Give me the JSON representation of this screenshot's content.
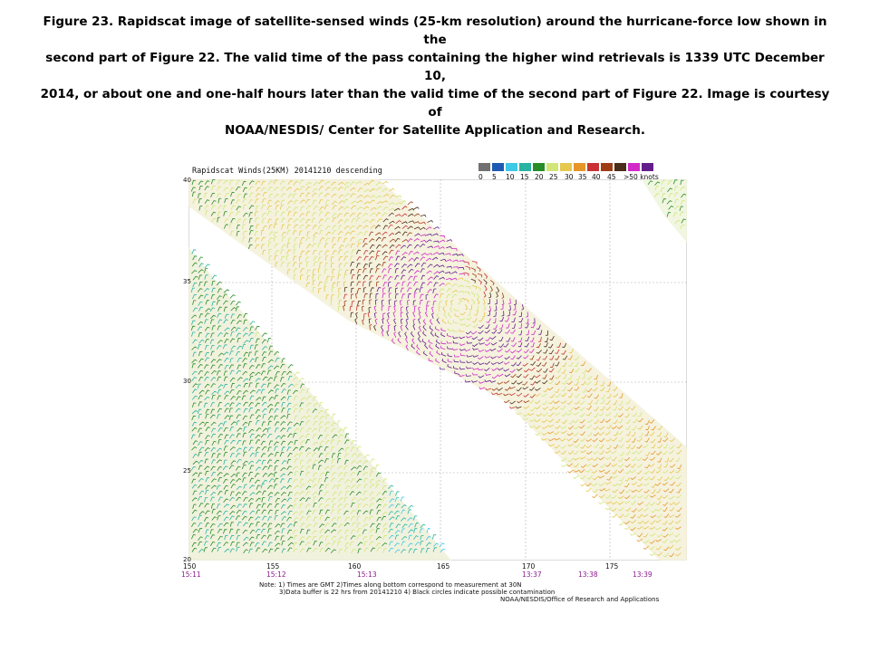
{
  "caption": {
    "lines": [
      "Figure 23.  Rapidscat image of satellite-sensed winds (25-km resolution) around the hurricane-force  low shown in the",
      "second part of Figure 22.  The valid time of the pass containing the higher wind retrievals is 1339 UTC December 10,",
      "2014, or about  one and one-half  hours later than the valid time of the second part of Figure 22.  Image is courtesy of",
      "NOAA/NESDIS/ Center for Satellite Application  and Research."
    ]
  },
  "map": {
    "title": "Rapidscat Winds(25KM) 20141210 descending",
    "legend": {
      "colors": [
        "#707070",
        "#1e5ab4",
        "#3cc8e6",
        "#28b4a0",
        "#288c28",
        "#d2e678",
        "#e6c850",
        "#e69628",
        "#c83232",
        "#a03c14",
        "#4b2d19",
        "#d228c8",
        "#641e8c"
      ],
      "labels": [
        "0",
        "5",
        "10",
        "15",
        "20",
        "25",
        "30",
        "35",
        "40",
        "45",
        ">50 knots"
      ]
    },
    "lat_labels": [
      "40",
      "35",
      "30",
      "25",
      "20"
    ],
    "lon_labels": [
      "150",
      "155",
      "160",
      "165",
      "170",
      "175"
    ],
    "time_labels": [
      {
        "text": "15:11",
        "color": "#8b1a8b"
      },
      {
        "text": "15:12",
        "color": "#8b1a8b"
      },
      {
        "text": "15:13",
        "color": "#8b1a8b"
      },
      {
        "text": "13:37",
        "color": "#8b1a8b"
      },
      {
        "text": "13:38",
        "color": "#8b1a8b"
      },
      {
        "text": "13:39",
        "color": "#8b1a8b"
      }
    ],
    "notes": [
      "Note: 1) Times are GMT 2)Times along bottom correspond to measurement at 30N",
      "3)Data buffer is 22 hrs from 20141210 4) Black circles indicate possible contamination",
      "NOAA/NESDIS/Office of Research and Applications"
    ]
  }
}
